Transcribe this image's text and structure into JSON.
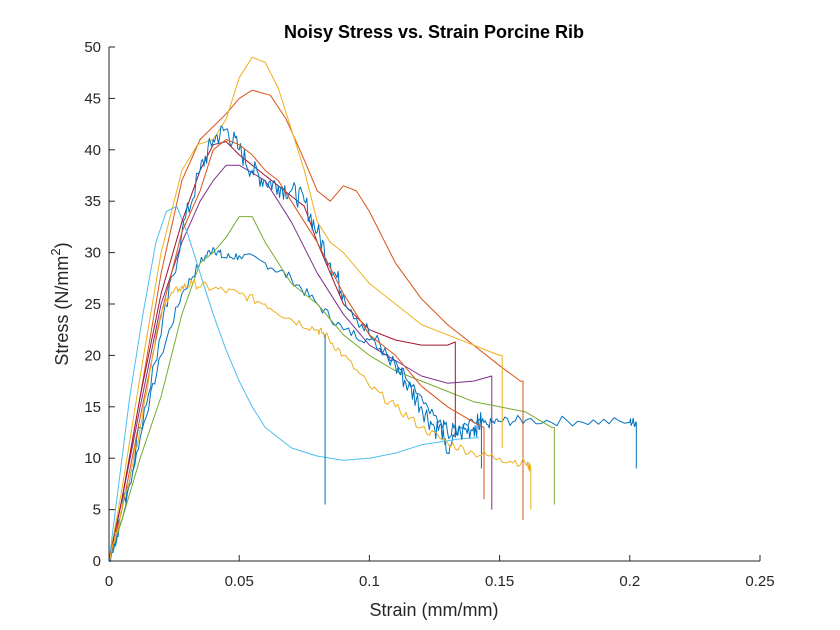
{
  "chart_data": {
    "type": "line",
    "title": "Noisy Stress vs. Strain Porcine Rib",
    "xlabel": "Strain (mm/mm)",
    "ylabel_main": "Stress (N/mm",
    "ylabel_sup": "2",
    "ylabel_close": ")",
    "xlim": [
      0,
      0.25
    ],
    "ylim": [
      0,
      50
    ],
    "xticks": [
      0,
      0.05,
      0.1,
      0.15,
      0.2,
      0.25
    ],
    "yticks": [
      0,
      5,
      10,
      15,
      20,
      25,
      30,
      35,
      40,
      45,
      50
    ],
    "xtick_labels": [
      "0",
      "0.05",
      "0.1",
      "0.15",
      "0.2",
      "0.25"
    ],
    "ytick_labels": [
      "0",
      "5",
      "10",
      "15",
      "20",
      "25",
      "30",
      "35",
      "40",
      "45",
      "50"
    ],
    "grid": false,
    "legend": "none",
    "series": [
      {
        "color": "#0072BD",
        "noise": 1,
        "points": [
          [
            0,
            0
          ],
          [
            0.005,
            4
          ],
          [
            0.012,
            12
          ],
          [
            0.02,
            20
          ],
          [
            0.028,
            26
          ],
          [
            0.035,
            29
          ],
          [
            0.04,
            30.5
          ],
          [
            0.044,
            29.5
          ],
          [
            0.05,
            29.7
          ],
          [
            0.06,
            29
          ],
          [
            0.07,
            27.5
          ],
          [
            0.08,
            25
          ],
          [
            0.09,
            22.5
          ],
          [
            0.1,
            21.5
          ],
          [
            0.11,
            19.5
          ],
          [
            0.12,
            16
          ],
          [
            0.128,
            13
          ],
          [
            0.13,
            10.5
          ],
          [
            0.133,
            12.5
          ],
          [
            0.14,
            13.5
          ],
          [
            0.145,
            13.3
          ],
          [
            0.15,
            13.6
          ],
          [
            0.16,
            13.7
          ],
          [
            0.18,
            13.6
          ],
          [
            0.2,
            13.5
          ],
          [
            0.2025,
            13.5
          ],
          [
            0.2025,
            9
          ]
        ]
      },
      {
        "color": "#D95319",
        "noise": 0,
        "points": [
          [
            0,
            0
          ],
          [
            0.005,
            6
          ],
          [
            0.012,
            16
          ],
          [
            0.02,
            28
          ],
          [
            0.028,
            37
          ],
          [
            0.035,
            41
          ],
          [
            0.045,
            43.5
          ],
          [
            0.05,
            45
          ],
          [
            0.055,
            45.8
          ],
          [
            0.062,
            45.3
          ],
          [
            0.068,
            43
          ],
          [
            0.075,
            39
          ],
          [
            0.08,
            36
          ],
          [
            0.085,
            35
          ],
          [
            0.09,
            36.5
          ],
          [
            0.095,
            36
          ],
          [
            0.1,
            34
          ],
          [
            0.11,
            29
          ],
          [
            0.12,
            25.5
          ],
          [
            0.13,
            23
          ],
          [
            0.14,
            21
          ],
          [
            0.15,
            19
          ],
          [
            0.158,
            17.5
          ],
          [
            0.159,
            17.5
          ],
          [
            0.159,
            4
          ]
        ]
      },
      {
        "color": "#EDB120",
        "noise": 0,
        "points": [
          [
            0,
            0
          ],
          [
            0.005,
            7
          ],
          [
            0.012,
            18
          ],
          [
            0.02,
            30
          ],
          [
            0.028,
            38
          ],
          [
            0.034,
            40.5
          ],
          [
            0.04,
            41
          ],
          [
            0.045,
            43
          ],
          [
            0.05,
            47
          ],
          [
            0.055,
            49
          ],
          [
            0.06,
            48.5
          ],
          [
            0.065,
            46
          ],
          [
            0.07,
            42
          ],
          [
            0.075,
            38
          ],
          [
            0.08,
            33
          ],
          [
            0.085,
            31
          ],
          [
            0.09,
            30
          ],
          [
            0.1,
            27
          ],
          [
            0.11,
            25
          ],
          [
            0.12,
            23
          ],
          [
            0.13,
            22
          ],
          [
            0.14,
            21
          ],
          [
            0.15,
            20
          ],
          [
            0.151,
            20
          ],
          [
            0.151,
            11
          ]
        ]
      },
      {
        "color": "#7E2F8E",
        "noise": 0,
        "points": [
          [
            0,
            0
          ],
          [
            0.005,
            6
          ],
          [
            0.012,
            15
          ],
          [
            0.02,
            25
          ],
          [
            0.028,
            31
          ],
          [
            0.035,
            35
          ],
          [
            0.04,
            37
          ],
          [
            0.045,
            38.5
          ],
          [
            0.05,
            38.5
          ],
          [
            0.06,
            37
          ],
          [
            0.07,
            33
          ],
          [
            0.08,
            28
          ],
          [
            0.09,
            24
          ],
          [
            0.1,
            21
          ],
          [
            0.11,
            19.5
          ],
          [
            0.12,
            18
          ],
          [
            0.13,
            17.3
          ],
          [
            0.14,
            17.5
          ],
          [
            0.147,
            18
          ],
          [
            0.147,
            18
          ],
          [
            0.147,
            5
          ]
        ]
      },
      {
        "color": "#77AC30",
        "noise": 0,
        "points": [
          [
            0,
            0
          ],
          [
            0.005,
            4
          ],
          [
            0.012,
            10
          ],
          [
            0.02,
            16
          ],
          [
            0.023,
            19
          ],
          [
            0.028,
            24
          ],
          [
            0.035,
            29
          ],
          [
            0.04,
            30
          ],
          [
            0.045,
            31.5
          ],
          [
            0.05,
            33.5
          ],
          [
            0.055,
            33.5
          ],
          [
            0.06,
            31
          ],
          [
            0.065,
            29
          ],
          [
            0.07,
            27
          ],
          [
            0.08,
            25
          ],
          [
            0.09,
            22
          ],
          [
            0.1,
            20
          ],
          [
            0.11,
            18.5
          ],
          [
            0.12,
            17.5
          ],
          [
            0.13,
            16.5
          ],
          [
            0.14,
            15.5
          ],
          [
            0.15,
            15
          ],
          [
            0.16,
            14.5
          ],
          [
            0.17,
            13
          ],
          [
            0.171,
            13
          ],
          [
            0.171,
            5.5
          ]
        ]
      },
      {
        "color": "#4DBEEE",
        "noise": 0,
        "points": [
          [
            0,
            0
          ],
          [
            0.003,
            6
          ],
          [
            0.008,
            16
          ],
          [
            0.013,
            24
          ],
          [
            0.018,
            31
          ],
          [
            0.022,
            34
          ],
          [
            0.026,
            34.5
          ],
          [
            0.03,
            32
          ],
          [
            0.035,
            28
          ],
          [
            0.04,
            24
          ],
          [
            0.045,
            20.5
          ],
          [
            0.05,
            17.5
          ],
          [
            0.055,
            15
          ],
          [
            0.06,
            13
          ],
          [
            0.07,
            11
          ],
          [
            0.08,
            10.2
          ],
          [
            0.09,
            9.8
          ],
          [
            0.1,
            10
          ],
          [
            0.11,
            10.5
          ],
          [
            0.12,
            11.3
          ],
          [
            0.13,
            11.7
          ],
          [
            0.135,
            11.9
          ],
          [
            0.142,
            12
          ],
          [
            0.142,
            12
          ]
        ]
      },
      {
        "color": "#A2142F",
        "noise": 0,
        "points": [
          [
            0,
            0
          ],
          [
            0.005,
            6
          ],
          [
            0.012,
            16
          ],
          [
            0.02,
            26
          ],
          [
            0.028,
            33
          ],
          [
            0.035,
            38
          ],
          [
            0.04,
            40.5
          ],
          [
            0.045,
            40.8
          ],
          [
            0.05,
            39.5
          ],
          [
            0.055,
            38.5
          ],
          [
            0.06,
            37.5
          ],
          [
            0.065,
            36.5
          ],
          [
            0.07,
            35.5
          ],
          [
            0.075,
            34.5
          ],
          [
            0.08,
            31
          ],
          [
            0.085,
            28
          ],
          [
            0.09,
            25
          ],
          [
            0.1,
            22.5
          ],
          [
            0.11,
            21.5
          ],
          [
            0.12,
            21
          ],
          [
            0.13,
            21
          ],
          [
            0.133,
            21.3
          ],
          [
            0.133,
            21.3
          ],
          [
            0.133,
            12
          ]
        ]
      },
      {
        "color": "#0072BD",
        "noise": 2.2,
        "points": [
          [
            0,
            0
          ],
          [
            0.005,
            5
          ],
          [
            0.012,
            13
          ],
          [
            0.02,
            22
          ],
          [
            0.028,
            32
          ],
          [
            0.035,
            38
          ],
          [
            0.04,
            41
          ],
          [
            0.045,
            42
          ],
          [
            0.05,
            40
          ],
          [
            0.055,
            38
          ],
          [
            0.06,
            37
          ],
          [
            0.065,
            36.5
          ],
          [
            0.07,
            36
          ],
          [
            0.075,
            35
          ],
          [
            0.08,
            32
          ],
          [
            0.085,
            29
          ],
          [
            0.09,
            26
          ],
          [
            0.1,
            22
          ],
          [
            0.11,
            19
          ],
          [
            0.115,
            17
          ],
          [
            0.12,
            15
          ],
          [
            0.125,
            13
          ],
          [
            0.13,
            12.5
          ],
          [
            0.135,
            12.5
          ],
          [
            0.14,
            13
          ],
          [
            0.143,
            13.5
          ],
          [
            0.143,
            13.5
          ],
          [
            0.143,
            9
          ]
        ]
      },
      {
        "color": "#D95319",
        "noise": 0,
        "points": [
          [
            0,
            0
          ],
          [
            0.005,
            5
          ],
          [
            0.012,
            14
          ],
          [
            0.02,
            24
          ],
          [
            0.028,
            32
          ],
          [
            0.035,
            36
          ],
          [
            0.04,
            40
          ],
          [
            0.045,
            41
          ],
          [
            0.05,
            40.5
          ],
          [
            0.055,
            39.5
          ],
          [
            0.06,
            38
          ],
          [
            0.065,
            37
          ],
          [
            0.07,
            35
          ],
          [
            0.075,
            33
          ],
          [
            0.08,
            31
          ],
          [
            0.09,
            26
          ],
          [
            0.1,
            22
          ],
          [
            0.11,
            20
          ],
          [
            0.12,
            17
          ],
          [
            0.13,
            15
          ],
          [
            0.14,
            13.5
          ],
          [
            0.144,
            13
          ],
          [
            0.144,
            13
          ],
          [
            0.144,
            6
          ]
        ]
      },
      {
        "color": "#EDB120",
        "noise": 0.9,
        "points": [
          [
            0,
            0
          ],
          [
            0.005,
            5
          ],
          [
            0.012,
            13
          ],
          [
            0.018,
            22
          ],
          [
            0.022,
            25.5
          ],
          [
            0.027,
            26.5
          ],
          [
            0.032,
            27
          ],
          [
            0.04,
            26.5
          ],
          [
            0.05,
            26
          ],
          [
            0.06,
            25
          ],
          [
            0.07,
            23.5
          ],
          [
            0.08,
            22.5
          ],
          [
            0.083,
            22
          ],
          [
            0.09,
            20
          ],
          [
            0.1,
            17
          ],
          [
            0.11,
            15
          ],
          [
            0.12,
            13
          ],
          [
            0.13,
            11.5
          ],
          [
            0.14,
            10.5
          ],
          [
            0.15,
            10
          ],
          [
            0.16,
            9.5
          ],
          [
            0.162,
            9
          ],
          [
            0.162,
            9
          ],
          [
            0.162,
            5
          ]
        ]
      },
      {
        "color": "#0072BD",
        "noise": 0,
        "points": [
          [
            0.083,
            22
          ],
          [
            0.083,
            5.5
          ]
        ]
      }
    ]
  }
}
